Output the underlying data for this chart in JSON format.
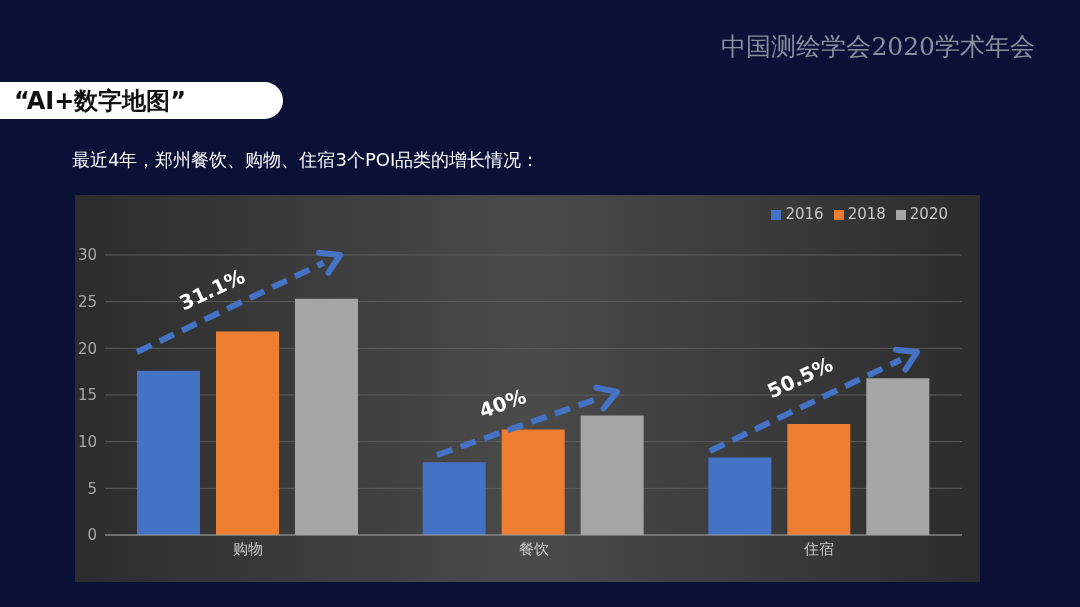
{
  "chart_data": {
    "type": "bar",
    "title": "“AI+数字地图”",
    "subtitle": "最近4年，郑州餐饮、购物、住宿3个POI品类的增长情况：",
    "annotations": [
      "中国测绘学会2020学术年会",
      "31.1%",
      "40%",
      "50.5%"
    ],
    "categories": [
      "购物",
      "餐饮",
      "住宿"
    ],
    "series": [
      {
        "name": "2016",
        "color": "#4472c4",
        "values": [
          17.6,
          7.8,
          8.3
        ]
      },
      {
        "name": "2018",
        "color": "#ed7d31",
        "values": [
          21.8,
          11.3,
          11.9
        ]
      },
      {
        "name": "2020",
        "color": "#a5a5a5",
        "values": [
          25.3,
          12.8,
          16.8
        ]
      }
    ],
    "ylim": [
      0,
      30
    ],
    "yticks": [
      0,
      5,
      10,
      15,
      20,
      25,
      30
    ],
    "grid": "y",
    "legend": "top right"
  }
}
